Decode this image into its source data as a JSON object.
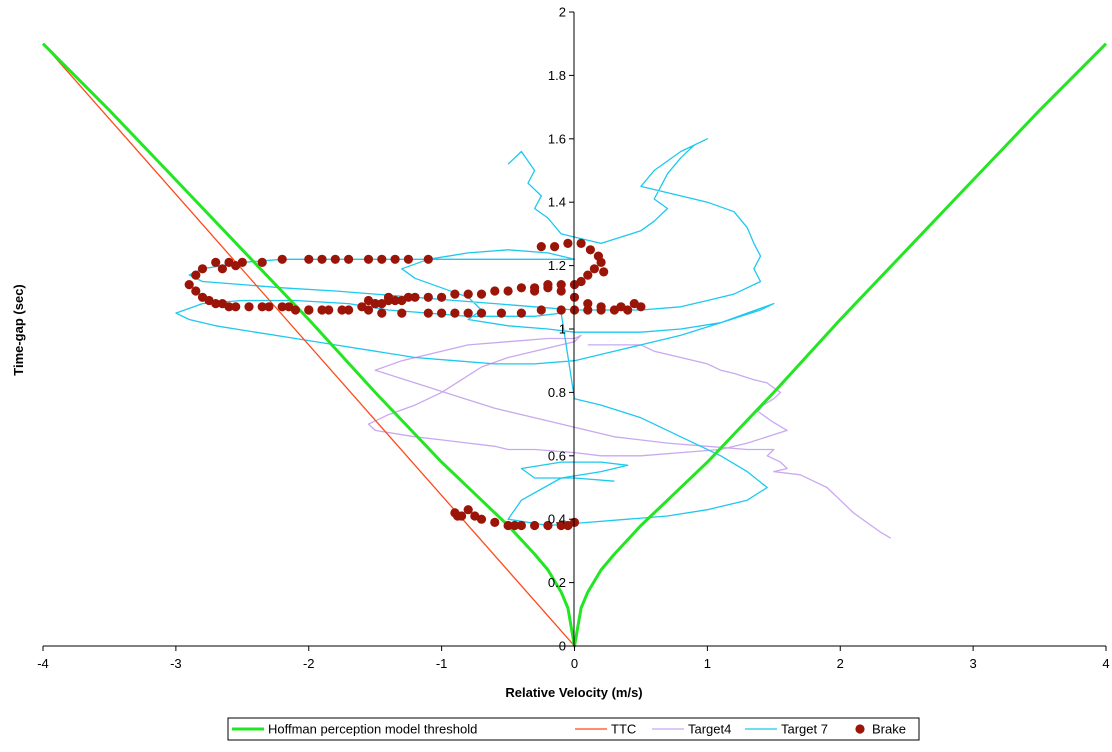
{
  "chart_data": {
    "type": "line",
    "title": "",
    "xlabel": "Relative Velocity (m/s)",
    "ylabel": "Time-gap (sec)",
    "xlim": [
      -4,
      4
    ],
    "ylim": [
      0,
      2
    ],
    "x_ticks": [
      "-4",
      "-3",
      "-2",
      "-1",
      "0",
      "1",
      "2",
      "3",
      "4"
    ],
    "y_ticks": [
      "0",
      "0.2",
      "0.4",
      "0.6",
      "0.8",
      "1",
      "1.2",
      "1.4",
      "1.6",
      "1.8",
      "2"
    ],
    "legend_position": "bottom",
    "series": [
      {
        "name": "Hoffman perception model threshold",
        "kind": "line",
        "color": "#22e622",
        "x": [
          -4,
          -3.5,
          -3,
          -2.5,
          -2,
          -1.5,
          -1,
          -0.7,
          -0.5,
          -0.3,
          -0.2,
          -0.1,
          -0.05,
          0,
          0.05,
          0.1,
          0.2,
          0.3,
          0.5,
          0.7,
          1,
          1.5,
          2,
          2.5,
          3,
          3.5,
          4
        ],
        "y": [
          1.9,
          1.69,
          1.47,
          1.25,
          1.03,
          0.8,
          0.58,
          0.46,
          0.38,
          0.29,
          0.24,
          0.17,
          0.12,
          0,
          0.12,
          0.17,
          0.24,
          0.29,
          0.38,
          0.46,
          0.58,
          0.8,
          1.03,
          1.25,
          1.47,
          1.69,
          1.9
        ]
      },
      {
        "name": "TTC",
        "kind": "line",
        "color": "#ff4a1c",
        "x": [
          -4,
          0
        ],
        "y": [
          1.9,
          0
        ]
      },
      {
        "name": "Target4",
        "kind": "line",
        "color": "#c9a8f0",
        "x": [
          0.1,
          0.2,
          0.5,
          0.6,
          0.8,
          1.0,
          1.1,
          1.2,
          1.35,
          1.45,
          1.48,
          1.55,
          1.5,
          1.42,
          1.38,
          1.48,
          1.6,
          1.45,
          1.3,
          1.1,
          0.8,
          0.5,
          0.2,
          0.0,
          -0.3,
          -0.5,
          -0.6,
          -0.8,
          -1.0,
          -1.2,
          -1.5,
          -1.55,
          -1.4,
          -1.2,
          -1.0,
          -0.85,
          -0.7,
          -0.5,
          -0.3,
          -0.1,
          0.0,
          0.05,
          0.0,
          -0.2,
          -0.5,
          -0.8,
          -1.0,
          -1.3,
          -1.5,
          -1.2,
          -0.9,
          -0.6,
          -0.3,
          0.0,
          0.3,
          0.7,
          1.0,
          1.3,
          1.5,
          1.45,
          1.55,
          1.6,
          1.5,
          1.7,
          1.8,
          1.9,
          2.0,
          2.1,
          2.2,
          2.3,
          2.38
        ],
        "y": [
          0.95,
          0.95,
          0.95,
          0.93,
          0.91,
          0.89,
          0.87,
          0.86,
          0.84,
          0.83,
          0.82,
          0.8,
          0.78,
          0.76,
          0.74,
          0.71,
          0.68,
          0.66,
          0.64,
          0.62,
          0.61,
          0.6,
          0.6,
          0.61,
          0.62,
          0.62,
          0.63,
          0.64,
          0.65,
          0.66,
          0.68,
          0.7,
          0.73,
          0.76,
          0.8,
          0.84,
          0.88,
          0.91,
          0.93,
          0.95,
          0.96,
          0.98,
          0.97,
          0.97,
          0.96,
          0.95,
          0.93,
          0.9,
          0.87,
          0.83,
          0.79,
          0.75,
          0.72,
          0.69,
          0.66,
          0.64,
          0.63,
          0.62,
          0.62,
          0.6,
          0.58,
          0.56,
          0.55,
          0.54,
          0.52,
          0.5,
          0.46,
          0.42,
          0.39,
          0.36,
          0.34
        ]
      },
      {
        "name": "Target 7",
        "kind": "line",
        "color": "#1ec8ee",
        "x": [
          -0.5,
          -0.4,
          -0.3,
          -0.35,
          -0.25,
          -0.3,
          -0.2,
          -0.1,
          0.1,
          0.2,
          0.5,
          0.6,
          0.7,
          0.6,
          0.65,
          0.7,
          0.8,
          0.9,
          1.0,
          0.8,
          0.6,
          0.5,
          0.8,
          1.0,
          1.2,
          1.3,
          1.35,
          1.4,
          1.35,
          1.4,
          1.3,
          1.2,
          1.0,
          0.8,
          0.5,
          0.2,
          0.0,
          -0.3,
          -0.6,
          -0.9,
          -1.2,
          -1.5,
          -1.8,
          -2.2,
          -2.5,
          -2.8,
          -2.9,
          -2.8,
          -2.5,
          -2.2,
          -1.9,
          -1.6,
          -1.3,
          -1.0,
          -0.7,
          -0.4,
          -0.2,
          0.0,
          -0.2,
          -0.5,
          -0.8,
          -1.1,
          -1.3,
          -1.2,
          -1.0,
          -0.8,
          -0.7,
          -0.8,
          -0.5,
          -0.2,
          0.0,
          0.2,
          0.5,
          0.8,
          1.1,
          1.3,
          1.5,
          1.4,
          1.1,
          0.8,
          0.5,
          0.2,
          0.0,
          -0.3,
          -0.6,
          -0.9,
          -1.2,
          -1.5,
          -1.8,
          -2.1,
          -2.4,
          -2.7,
          -2.9,
          -3.0,
          -2.8,
          -2.5,
          -2.1,
          -1.7,
          -1.4,
          -1.1,
          -0.8,
          -0.5,
          -0.3,
          -0.1,
          0.0,
          0.2,
          0.5,
          0.8,
          1.1,
          1.3,
          1.45,
          1.3,
          1.0,
          0.7,
          0.4,
          0.1,
          -0.2,
          -0.5,
          -0.4,
          -0.1,
          0.2,
          0.4,
          0.2,
          -0.1,
          -0.4,
          -0.3,
          0.0,
          0.3
        ],
        "y": [
          1.52,
          1.56,
          1.5,
          1.46,
          1.42,
          1.38,
          1.35,
          1.3,
          1.28,
          1.27,
          1.31,
          1.34,
          1.38,
          1.41,
          1.45,
          1.49,
          1.54,
          1.58,
          1.6,
          1.56,
          1.5,
          1.45,
          1.42,
          1.4,
          1.37,
          1.32,
          1.27,
          1.23,
          1.19,
          1.15,
          1.13,
          1.11,
          1.09,
          1.07,
          1.06,
          1.06,
          1.06,
          1.07,
          1.08,
          1.09,
          1.1,
          1.11,
          1.12,
          1.13,
          1.14,
          1.15,
          1.17,
          1.19,
          1.21,
          1.22,
          1.22,
          1.22,
          1.22,
          1.22,
          1.22,
          1.22,
          1.22,
          1.22,
          1.24,
          1.25,
          1.24,
          1.22,
          1.19,
          1.16,
          1.13,
          1.1,
          1.06,
          1.03,
          1.01,
          1.0,
          0.99,
          0.99,
          0.99,
          1.0,
          1.02,
          1.05,
          1.08,
          1.06,
          1.02,
          0.98,
          0.95,
          0.92,
          0.9,
          0.89,
          0.89,
          0.9,
          0.91,
          0.93,
          0.95,
          0.97,
          0.99,
          1.01,
          1.03,
          1.05,
          1.08,
          1.09,
          1.09,
          1.08,
          1.06,
          1.05,
          1.04,
          1.04,
          1.04,
          1.05,
          0.78,
          0.76,
          0.72,
          0.66,
          0.6,
          0.55,
          0.5,
          0.46,
          0.43,
          0.41,
          0.4,
          0.39,
          0.38,
          0.4,
          0.46,
          0.53,
          0.55,
          0.57,
          0.58,
          0.58,
          0.56,
          0.53,
          0.53,
          0.52
        ]
      },
      {
        "name": "Brake",
        "kind": "scatter",
        "color": "#9b1408",
        "x": [
          -2.9,
          -2.85,
          -2.8,
          -2.75,
          -2.7,
          -2.65,
          -2.6,
          -2.55,
          -2.45,
          -2.35,
          -2.2,
          -2.1,
          -2.0,
          -1.9,
          -1.75,
          -1.6,
          -1.5,
          -1.45,
          -1.4,
          -1.35,
          -1.3,
          -1.25,
          -1.2,
          -1.1,
          -1.0,
          -0.9,
          -0.8,
          -0.7,
          -0.6,
          -0.5,
          -0.4,
          -0.3,
          -0.2,
          -0.1,
          0.0,
          0.05,
          0.1,
          0.15,
          0.2,
          0.22,
          0.18,
          0.12,
          0.05,
          -0.05,
          -0.15,
          -0.25,
          -0.3,
          -0.2,
          -0.1,
          0.0,
          0.1,
          0.2,
          0.3,
          0.4,
          0.5,
          -2.85,
          -2.8,
          -2.7,
          -2.6,
          -2.5,
          -2.35,
          -2.2,
          -2.0,
          -1.9,
          -1.8,
          -1.7,
          -1.55,
          -1.45,
          -1.35,
          -1.25,
          -1.1,
          -1.0,
          -0.9,
          -0.8,
          -0.7,
          -0.55,
          -0.4,
          -0.25,
          -0.1,
          0.0,
          0.1,
          0.2,
          0.35,
          0.45,
          -2.65,
          -2.55,
          -2.3,
          -2.15,
          -2.0,
          -1.85,
          -1.7,
          -1.55,
          -1.45,
          -1.3,
          -1.1,
          -0.9,
          -0.88,
          -0.85,
          -0.8,
          -0.75,
          -0.7,
          -0.6,
          -0.5,
          -0.45,
          -0.4,
          -0.3,
          -0.2,
          -0.1,
          -0.05,
          0.0,
          -1.5,
          -1.4,
          -1.55
        ],
        "y": [
          1.14,
          1.12,
          1.1,
          1.09,
          1.08,
          1.08,
          1.07,
          1.07,
          1.07,
          1.07,
          1.07,
          1.06,
          1.06,
          1.06,
          1.06,
          1.07,
          1.08,
          1.08,
          1.09,
          1.09,
          1.09,
          1.1,
          1.1,
          1.1,
          1.1,
          1.11,
          1.11,
          1.11,
          1.12,
          1.12,
          1.13,
          1.13,
          1.13,
          1.14,
          1.14,
          1.15,
          1.17,
          1.19,
          1.21,
          1.18,
          1.23,
          1.25,
          1.27,
          1.27,
          1.26,
          1.26,
          1.12,
          1.14,
          1.12,
          1.1,
          1.08,
          1.07,
          1.06,
          1.06,
          1.07,
          1.17,
          1.19,
          1.21,
          1.21,
          1.21,
          1.21,
          1.22,
          1.22,
          1.22,
          1.22,
          1.22,
          1.22,
          1.22,
          1.22,
          1.22,
          1.22,
          1.05,
          1.05,
          1.05,
          1.05,
          1.05,
          1.05,
          1.06,
          1.06,
          1.06,
          1.06,
          1.06,
          1.07,
          1.08,
          1.19,
          1.2,
          1.07,
          1.07,
          1.06,
          1.06,
          1.06,
          1.06,
          1.05,
          1.05,
          1.05,
          0.42,
          0.41,
          0.41,
          0.43,
          0.41,
          0.4,
          0.39,
          0.38,
          0.38,
          0.38,
          0.38,
          0.38,
          0.38,
          0.38,
          0.39,
          1.08,
          1.1,
          1.09
        ]
      }
    ]
  }
}
